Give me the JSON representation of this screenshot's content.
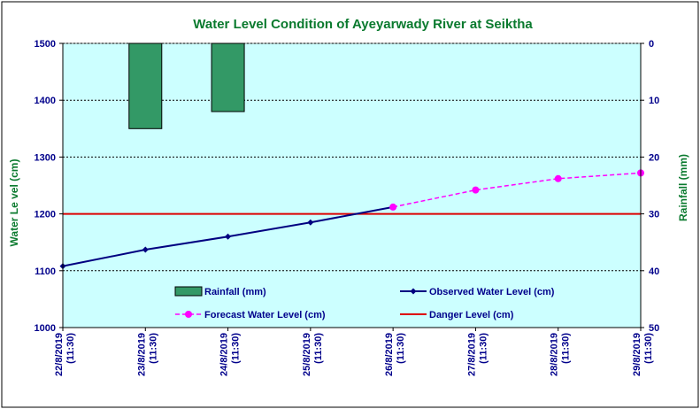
{
  "chart_data": {
    "type": "bar+line",
    "title": "Water Level Condition of Ayeyarwady  River at Seiktha",
    "y_left_label": "Water Le vel (cm)",
    "y_right_label": "Rainfall (mm)",
    "y_left_lim": [
      1000,
      1500
    ],
    "y_left_ticks": [
      "1000",
      "1100",
      "1200",
      "1300",
      "1400",
      "1500"
    ],
    "y_right_lim": [
      0,
      50
    ],
    "y_right_inverted": true,
    "y_right_ticks": [
      "0",
      "10",
      "20",
      "30",
      "40",
      "50"
    ],
    "categories": [
      [
        "22/8/2019",
        "(11:30)"
      ],
      [
        "23/8/2019",
        "(11:30)"
      ],
      [
        "24/8/2019",
        "(11:30)"
      ],
      [
        "25/8/2019",
        "(11:30)"
      ],
      [
        "26/8/2019",
        "(11:30)"
      ],
      [
        "27/8/2019",
        "(11:30)"
      ],
      [
        "28/8/2019",
        "(11:30)"
      ],
      [
        "29/8/2019",
        "(11:30)"
      ]
    ],
    "series": [
      {
        "name": "Rainfall (mm)",
        "kind": "bar",
        "axis": "right",
        "color": "#339966",
        "values": [
          null,
          15,
          12,
          null,
          null,
          null,
          null,
          null
        ]
      },
      {
        "name": "Observed Water Level (cm)",
        "kind": "line",
        "axis": "left",
        "color": "#000080",
        "values": [
          1108,
          1137,
          1160,
          1185,
          1212,
          null,
          null,
          null
        ]
      },
      {
        "name": "Forecast Water Level (cm)",
        "kind": "line-dashed",
        "axis": "left",
        "color": "#ff00ff",
        "values": [
          null,
          null,
          null,
          null,
          1212,
          1242,
          1262,
          1272
        ]
      },
      {
        "name": "Danger Level (cm)",
        "kind": "hline",
        "axis": "left",
        "color": "#dd0000",
        "value": 1200
      }
    ],
    "grid": true,
    "plot_background": "#ccffff",
    "legend_position": "inside-bottom"
  }
}
